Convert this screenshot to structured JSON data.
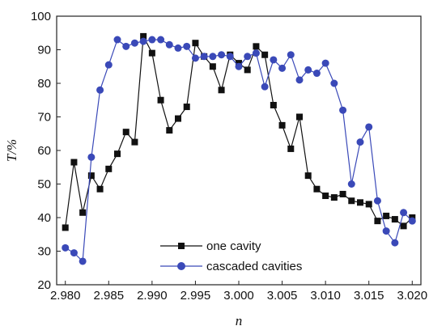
{
  "chart_data": {
    "type": "line",
    "xlabel": "n",
    "ylabel": "T/%",
    "xlim": [
      2.979,
      3.021
    ],
    "ylim": [
      20,
      100
    ],
    "x_ticks": [
      "2.980",
      "2.985",
      "2.990",
      "2.995",
      "3.000",
      "3.005",
      "3.010",
      "3.015",
      "3.020"
    ],
    "y_ticks": [
      "20",
      "30",
      "40",
      "50",
      "60",
      "70",
      "80",
      "90",
      "100"
    ],
    "grid": false,
    "legend_position": "bottom-center",
    "series": [
      {
        "name": "one cavity",
        "marker": "square",
        "color": "#111111",
        "x": [
          2.98,
          2.981,
          2.982,
          2.983,
          2.984,
          2.985,
          2.986,
          2.987,
          2.988,
          2.989,
          2.99,
          2.991,
          2.992,
          2.993,
          2.994,
          2.995,
          2.996,
          2.997,
          2.998,
          2.999,
          3.0,
          3.001,
          3.002,
          3.003,
          3.004,
          3.005,
          3.006,
          3.007,
          3.008,
          3.009,
          3.01,
          3.011,
          3.012,
          3.013,
          3.014,
          3.015,
          3.016,
          3.017,
          3.018,
          3.019,
          3.02
        ],
        "y": [
          37,
          56.5,
          41.5,
          52.5,
          48.5,
          54.5,
          59,
          65.5,
          62.5,
          94,
          89,
          75,
          66,
          69.5,
          73,
          92,
          88,
          85,
          78,
          88.5,
          86,
          84,
          91,
          88.5,
          73.5,
          67.5,
          60.5,
          70,
          52.5,
          48.5,
          46.5,
          46,
          47,
          45,
          44.5,
          44,
          39,
          40.5,
          39.5,
          37.5,
          40
        ]
      },
      {
        "name": "cascaded cavities",
        "marker": "circle",
        "color": "#3a49b8",
        "x": [
          2.98,
          2.981,
          2.982,
          2.983,
          2.984,
          2.985,
          2.986,
          2.987,
          2.988,
          2.989,
          2.99,
          2.991,
          2.992,
          2.993,
          2.994,
          2.995,
          2.996,
          2.997,
          2.998,
          2.999,
          3.0,
          3.001,
          3.002,
          3.003,
          3.004,
          3.005,
          3.006,
          3.007,
          3.008,
          3.009,
          3.01,
          3.011,
          3.012,
          3.013,
          3.014,
          3.015,
          3.016,
          3.017,
          3.018,
          3.019,
          3.02
        ],
        "y": [
          31,
          29.5,
          27,
          58,
          78,
          85.5,
          93,
          91,
          92,
          92.5,
          93,
          93,
          91.5,
          90.5,
          91,
          87.5,
          88,
          88,
          88.5,
          88,
          85,
          88,
          89,
          79,
          87,
          84.5,
          88.5,
          81,
          84,
          83,
          86,
          80,
          72,
          50,
          62.5,
          67,
          45,
          36,
          32.5,
          41.5,
          39
        ]
      }
    ]
  }
}
